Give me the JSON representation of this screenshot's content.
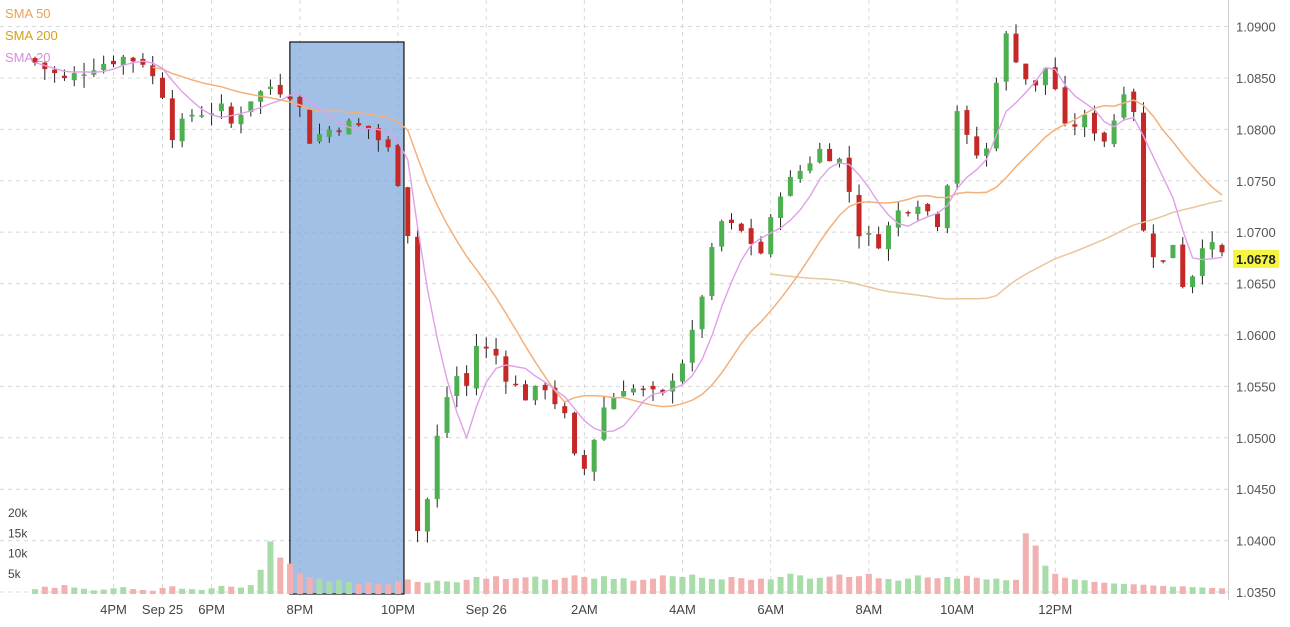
{
  "chart_data": {
    "type": "candlestick",
    "legend": [
      {
        "label": "SMA 50",
        "color": "#e8a25a"
      },
      {
        "label": "SMA 200",
        "color": "#d4a017"
      },
      {
        "label": "SMA 20",
        "color": "#d98be0"
      }
    ],
    "y_ticks": [
      "1.0900",
      "1.0850",
      "1.0800",
      "1.0750",
      "1.0700",
      "1.0650",
      "1.0600",
      "1.0550",
      "1.0500",
      "1.0450",
      "1.0400",
      "1.0350"
    ],
    "ylim": [
      1.035,
      1.092
    ],
    "x_ticks": [
      "4PM",
      "Sep 25",
      "6PM",
      "8PM",
      "10PM",
      "Sep 26",
      "2AM",
      "4AM",
      "6AM",
      "8AM",
      "10AM",
      "12PM"
    ],
    "volume_ticks": [
      "20k",
      "15k",
      "10k",
      "5k"
    ],
    "last_price": "1.0678",
    "highlight_region": {
      "from": "8PM",
      "to": "10PM"
    },
    "colors": {
      "up": "#4caf50",
      "down": "#c62828",
      "sma50": "#f4b07a",
      "sma200": "#e8c79a",
      "sma20": "#dfa0e8",
      "highlight": "#7ea6dc",
      "last_box": "#f5f542"
    },
    "price_path": [
      [
        0,
        1.0865
      ],
      [
        3,
        1.0848
      ],
      [
        6,
        1.0862
      ],
      [
        9,
        1.087
      ],
      [
        11,
        1.0866
      ],
      [
        13,
        1.0835
      ],
      [
        14,
        1.0795
      ],
      [
        16,
        1.0815
      ],
      [
        19,
        1.082
      ],
      [
        20,
        1.0805
      ],
      [
        22,
        1.083
      ],
      [
        24,
        1.0842
      ],
      [
        26,
        1.0835
      ],
      [
        27,
        1.082
      ],
      [
        28,
        1.079
      ],
      [
        30,
        1.08
      ],
      [
        32,
        1.0805
      ],
      [
        34,
        1.08
      ],
      [
        36,
        1.078
      ],
      [
        37,
        1.075
      ],
      [
        38,
        1.07
      ],
      [
        39,
        1.041
      ],
      [
        40,
        1.044
      ],
      [
        41,
        1.05
      ],
      [
        42,
        1.054
      ],
      [
        43,
        1.056
      ],
      [
        44,
        1.055
      ],
      [
        45,
        1.059
      ],
      [
        47,
        1.058
      ],
      [
        48,
        1.056
      ],
      [
        50,
        1.054
      ],
      [
        52,
        1.055
      ],
      [
        54,
        1.052
      ],
      [
        55,
        1.048
      ],
      [
        56,
        1.047
      ],
      [
        57,
        1.05
      ],
      [
        58,
        1.053
      ],
      [
        60,
        1.055
      ],
      [
        62,
        1.0545
      ],
      [
        64,
        1.054
      ],
      [
        65,
        1.056
      ],
      [
        66,
        1.0575
      ],
      [
        67,
        1.06
      ],
      [
        68,
        1.064
      ],
      [
        69,
        1.068
      ],
      [
        70,
        1.071
      ],
      [
        72,
        1.07
      ],
      [
        74,
        1.068
      ],
      [
        76,
        1.074
      ],
      [
        78,
        1.076
      ],
      [
        80,
        1.078
      ],
      [
        82,
        1.077
      ],
      [
        83,
        1.074
      ],
      [
        84,
        1.07
      ],
      [
        86,
        1.069
      ],
      [
        88,
        1.072
      ],
      [
        90,
        1.073
      ],
      [
        92,
        1.071
      ],
      [
        93,
        1.075
      ],
      [
        94,
        1.082
      ],
      [
        95,
        1.079
      ],
      [
        96,
        1.0775
      ],
      [
        97,
        1.078
      ],
      [
        98,
        1.085
      ],
      [
        99,
        1.089
      ],
      [
        100,
        1.087
      ],
      [
        101,
        1.085
      ],
      [
        102,
        1.084
      ],
      [
        103,
        1.086
      ],
      [
        104,
        1.084
      ],
      [
        105,
        1.08
      ],
      [
        107,
        1.081
      ],
      [
        109,
        1.079
      ],
      [
        110,
        1.081
      ],
      [
        111,
        1.084
      ],
      [
        112,
        1.082
      ],
      [
        113,
        1.07
      ],
      [
        114,
        1.068
      ],
      [
        115,
        1.067
      ],
      [
        116,
        1.069
      ],
      [
        117,
        1.065
      ],
      [
        118,
        1.066
      ],
      [
        119,
        1.069
      ],
      [
        120,
        1.0685
      ],
      [
        121,
        1.0678
      ]
    ],
    "volume_values": [
      1200,
      1800,
      1500,
      2200,
      1600,
      1300,
      900,
      1100,
      1400,
      1700,
      1200,
      1000,
      800,
      1500,
      1900,
      1300,
      1200,
      1000,
      1400,
      2000,
      1800,
      1600,
      2200,
      6000,
      13000,
      9000,
      7500,
      5000,
      4200,
      3800,
      3200,
      3500,
      3000,
      2500,
      2800,
      2600,
      2400,
      3200,
      3600,
      3000,
      2800,
      3300,
      3100,
      2900,
      3500,
      4200,
      3800,
      4400,
      3700,
      3900,
      4100,
      4300,
      3600,
      3500,
      4000,
      4600,
      4200,
      3800,
      4400,
      3700,
      3900,
      3300,
      3500,
      3800,
      4600,
      4400,
      4200,
      4800,
      4000,
      3700,
      3600,
      4200,
      3900,
      3500,
      3800,
      3600,
      4200,
      5000,
      4600,
      3800,
      4000,
      4300,
      4800,
      4200,
      4400,
      5000,
      3900,
      3700,
      3300,
      3800,
      4600,
      4100,
      3900,
      4200,
      3800,
      4500,
      4000,
      3600,
      3800,
      3400,
      3500,
      15000,
      12000,
      7000,
      5000,
      4000,
      3600,
      3400,
      3000,
      2800,
      2600,
      2500,
      2400,
      2300,
      2100,
      2000,
      1800,
      1900,
      1700,
      1600,
      1500,
      1400
    ]
  }
}
